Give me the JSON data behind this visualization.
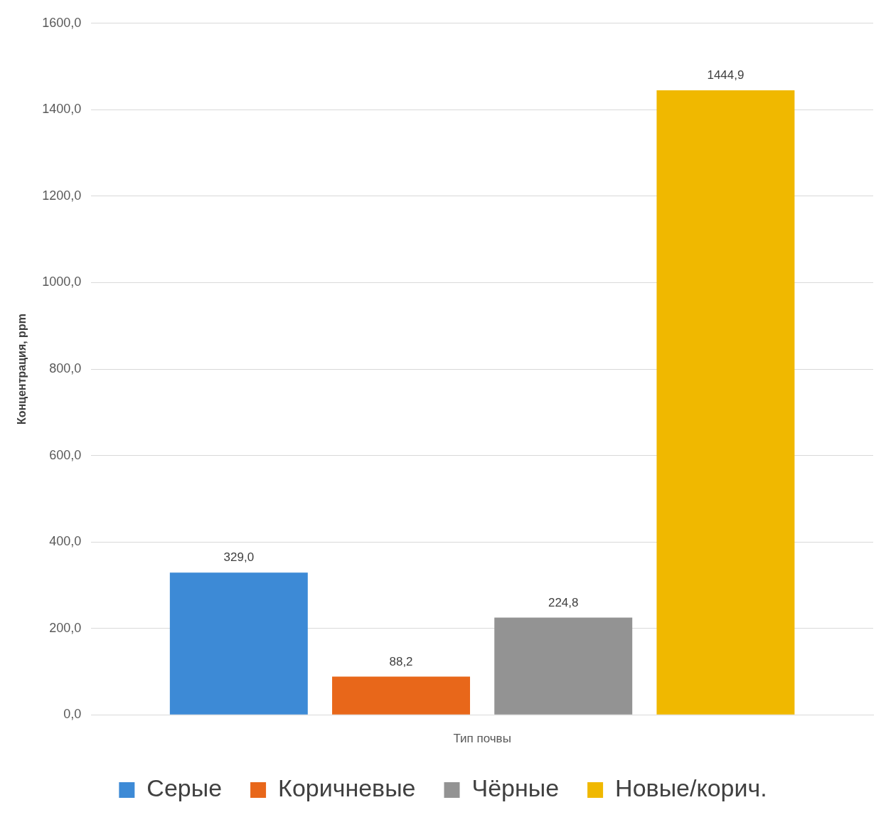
{
  "chart_data": {
    "type": "bar",
    "xlabel": "Тип почвы",
    "ylabel": "Концентрация, ppm",
    "categories": [
      null
    ],
    "series": [
      {
        "name": "Серые",
        "color": "#3d8ad6",
        "values": [
          329.0
        ],
        "value_labels": [
          "329,0"
        ]
      },
      {
        "name": "Коричневые",
        "color": "#e8671a",
        "values": [
          88.2
        ],
        "value_labels": [
          "88,2"
        ]
      },
      {
        "name": "Чёрные",
        "color": "#939393",
        "values": [
          224.8
        ],
        "value_labels": [
          "224,8"
        ]
      },
      {
        "name": "Новые/корич.",
        "color": "#f0b800",
        "values": [
          1444.9
        ],
        "value_labels": [
          "1444,9"
        ]
      }
    ],
    "ylim": [
      0,
      1600
    ],
    "yticks": [
      {
        "value": 0,
        "label": "0,0"
      },
      {
        "value": 200,
        "label": "200,0"
      },
      {
        "value": 400,
        "label": "400,0"
      },
      {
        "value": 600,
        "label": "600,0"
      },
      {
        "value": 800,
        "label": "800,0"
      },
      {
        "value": 1000,
        "label": "1000,0"
      },
      {
        "value": 1200,
        "label": "1200,0"
      },
      {
        "value": 1400,
        "label": "1400,0"
      },
      {
        "value": 1600,
        "label": "1600,0"
      }
    ],
    "grid": "y",
    "legend": "bottom"
  }
}
